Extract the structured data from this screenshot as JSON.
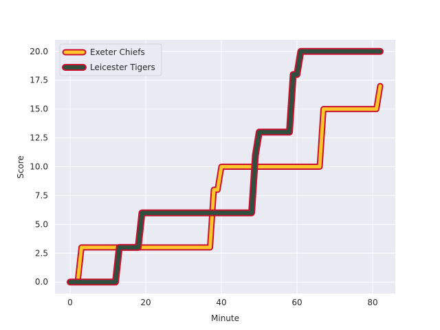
{
  "chart_data": {
    "type": "line",
    "xlabel": "Minute",
    "ylabel": "Score",
    "xlim": [
      -4,
      86
    ],
    "ylim": [
      -1,
      21
    ],
    "xticks": [
      0,
      20,
      40,
      60,
      80
    ],
    "yticks": [
      0.0,
      2.5,
      5.0,
      7.5,
      10.0,
      12.5,
      15.0,
      17.5,
      20.0
    ],
    "ytick_labels": [
      "0.0",
      "2.5",
      "5.0",
      "7.5",
      "10.0",
      "12.5",
      "15.0",
      "17.5",
      "20.0"
    ],
    "grid": true,
    "legend_position": "upper-left",
    "background": "#eaeaf2",
    "series": [
      {
        "name": "Exeter Chiefs",
        "color": "#ffc72c",
        "edge_color": "#c8102e",
        "x": [
          0,
          2,
          3,
          37,
          38,
          39,
          40,
          66,
          67,
          81,
          82
        ],
        "y": [
          0,
          0,
          3,
          3,
          8,
          8,
          10,
          10,
          15,
          15,
          17
        ]
      },
      {
        "name": "Leicester Tigers",
        "color": "#2f4f3f",
        "edge_color": "#c8102e",
        "x": [
          0,
          12,
          13,
          18,
          19,
          48,
          49,
          50,
          58,
          59,
          60,
          61,
          82
        ],
        "y": [
          0,
          0,
          3,
          3,
          6,
          6,
          11,
          13,
          13,
          18,
          18,
          20,
          20
        ]
      }
    ]
  }
}
